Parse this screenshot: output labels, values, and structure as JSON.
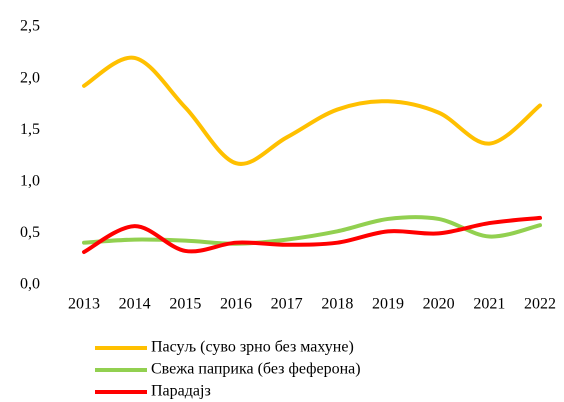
{
  "chart_data": {
    "type": "line",
    "smooth": true,
    "grid": false,
    "legend": "bottom",
    "categories": [
      "2013",
      "2014",
      "2015",
      "2016",
      "2017",
      "2018",
      "2019",
      "2020",
      "2021",
      "2022"
    ],
    "series": [
      {
        "name": "Пасуљ (суво зрно без махуне)",
        "color": "#FFC000",
        "values": [
          1.93,
          2.2,
          1.72,
          1.18,
          1.43,
          1.7,
          1.78,
          1.67,
          1.37,
          1.74
        ]
      },
      {
        "name": "Свежа паприка (без феферона)",
        "color": "#92D050",
        "values": [
          0.41,
          0.44,
          0.43,
          0.4,
          0.44,
          0.52,
          0.64,
          0.64,
          0.47,
          0.58
        ]
      },
      {
        "name": "Парадајз",
        "color": "#FF0000",
        "values": [
          0.32,
          0.57,
          0.33,
          0.41,
          0.39,
          0.41,
          0.52,
          0.5,
          0.6,
          0.65
        ]
      }
    ],
    "ylim": [
      0,
      2.5
    ],
    "yticks": [
      {
        "value": 0,
        "label": "0,0"
      },
      {
        "value": 0.5,
        "label": "0,5"
      },
      {
        "value": 1,
        "label": "1,0"
      },
      {
        "value": 1.5,
        "label": "1,5"
      },
      {
        "value": 2,
        "label": "2,0"
      },
      {
        "value": 2.5,
        "label": "2,5"
      }
    ]
  }
}
